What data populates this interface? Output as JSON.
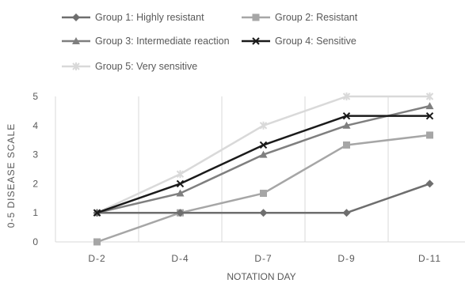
{
  "chart_data": {
    "type": "line",
    "title": "",
    "xlabel": "NOTATION DAY",
    "ylabel": "0-5 DISEASE SCALE",
    "categories": [
      "D-2",
      "D-4",
      "D-7",
      "D-9",
      "D-11"
    ],
    "ylim": [
      0,
      5
    ],
    "yticks": [
      "0",
      "1",
      "2",
      "3",
      "4",
      "5"
    ],
    "grid": "vertical",
    "legend_position": "top",
    "series": [
      {
        "name": "Group 1: Highly resistant",
        "values": [
          1,
          1,
          1,
          1,
          2
        ],
        "color": "#6e6e6e",
        "marker": "diamond"
      },
      {
        "name": "Group 2: Resistant",
        "values": [
          0,
          1,
          1.67,
          3.33,
          3.67
        ],
        "color": "#a6a6a6",
        "marker": "square"
      },
      {
        "name": "Group 3: Intermediate reaction",
        "values": [
          1,
          1.67,
          3,
          4,
          4.67
        ],
        "color": "#7f7f7f",
        "marker": "triangle"
      },
      {
        "name": "Group 4: Sensitive",
        "values": [
          1,
          2,
          3.33,
          4.33,
          4.33
        ],
        "color": "#1a1a1a",
        "marker": "x"
      },
      {
        "name": "Group 5: Very sensitive",
        "values": [
          1,
          2.33,
          4,
          5,
          5
        ],
        "color": "#d9d9d9",
        "marker": "star"
      }
    ]
  }
}
